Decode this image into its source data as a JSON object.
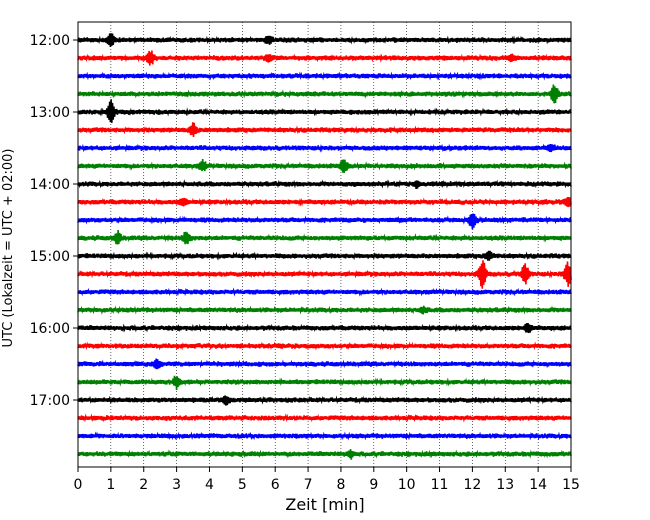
{
  "chart_data": {
    "type": "line",
    "chart_kind": "helicorder",
    "title": "",
    "xlabel": "Zeit  [min]",
    "ylabel": "UTC (Lokalzeit = UTC + 02:00)",
    "xlim": [
      0,
      15
    ],
    "x_ticks": [
      0,
      1,
      2,
      3,
      4,
      5,
      6,
      7,
      8,
      9,
      10,
      11,
      12,
      13,
      14,
      15
    ],
    "x_tick_labels": [
      "0",
      "1",
      "2",
      "3",
      "4",
      "5",
      "6",
      "7",
      "8",
      "9",
      "10",
      "11",
      "12",
      "13",
      "14",
      "15"
    ],
    "vertical_grid": "dotted",
    "trace_interval_min": 15,
    "trace_colors": [
      "#000000",
      "#ff0000",
      "#0000ff",
      "#008000"
    ],
    "y_tick_labels": [
      {
        "label": "12:00",
        "trace": 0
      },
      {
        "label": "13:00",
        "trace": 4
      },
      {
        "label": "14:00",
        "trace": 8
      },
      {
        "label": "15:00",
        "trace": 12
      },
      {
        "label": "16:00",
        "trace": 16
      },
      {
        "label": "17:00",
        "trace": 20
      }
    ],
    "traces": [
      {
        "start": "12:00",
        "events": [
          {
            "t": 1.0,
            "amp": 0.35
          },
          {
            "t": 5.8,
            "amp": 0.2
          }
        ]
      },
      {
        "start": "12:15",
        "events": [
          {
            "t": 2.2,
            "amp": 0.4
          },
          {
            "t": 5.8,
            "amp": 0.2
          },
          {
            "t": 13.2,
            "amp": 0.15
          }
        ]
      },
      {
        "start": "12:30",
        "events": []
      },
      {
        "start": "12:45",
        "events": [
          {
            "t": 14.5,
            "amp": 0.6
          }
        ]
      },
      {
        "start": "13:00",
        "events": [
          {
            "t": 1.0,
            "amp": 0.7
          }
        ]
      },
      {
        "start": "13:15",
        "events": [
          {
            "t": 3.5,
            "amp": 0.35
          }
        ]
      },
      {
        "start": "13:30",
        "events": [
          {
            "t": 14.4,
            "amp": 0.15
          }
        ]
      },
      {
        "start": "13:45",
        "events": [
          {
            "t": 3.8,
            "amp": 0.3
          },
          {
            "t": 8.1,
            "amp": 0.4
          }
        ]
      },
      {
        "start": "14:00",
        "events": [
          {
            "t": 10.3,
            "amp": 0.15
          }
        ]
      },
      {
        "start": "14:15",
        "events": [
          {
            "t": 3.2,
            "amp": 0.2
          },
          {
            "t": 14.9,
            "amp": 0.25
          }
        ]
      },
      {
        "start": "14:30",
        "events": [
          {
            "t": 12.0,
            "amp": 0.5
          }
        ]
      },
      {
        "start": "14:45",
        "events": [
          {
            "t": 1.2,
            "amp": 0.35
          },
          {
            "t": 3.3,
            "amp": 0.35
          }
        ]
      },
      {
        "start": "15:00",
        "events": [
          {
            "t": 12.5,
            "amp": 0.25
          }
        ]
      },
      {
        "start": "15:15",
        "events": [
          {
            "t": 12.3,
            "amp": 0.9
          },
          {
            "t": 13.6,
            "amp": 0.6
          },
          {
            "t": 14.9,
            "amp": 0.7
          }
        ]
      },
      {
        "start": "15:30",
        "events": []
      },
      {
        "start": "15:45",
        "events": [
          {
            "t": 10.5,
            "amp": 0.15
          }
        ]
      },
      {
        "start": "16:00",
        "events": [
          {
            "t": 13.7,
            "amp": 0.3
          }
        ]
      },
      {
        "start": "16:15",
        "events": []
      },
      {
        "start": "16:30",
        "events": [
          {
            "t": 2.4,
            "amp": 0.3
          }
        ]
      },
      {
        "start": "16:45",
        "events": [
          {
            "t": 3.0,
            "amp": 0.35
          }
        ]
      },
      {
        "start": "17:00",
        "events": [
          {
            "t": 4.5,
            "amp": 0.25
          }
        ]
      },
      {
        "start": "17:15",
        "events": []
      },
      {
        "start": "17:30",
        "events": []
      },
      {
        "start": "17:45",
        "events": [
          {
            "t": 8.3,
            "amp": 0.2
          }
        ]
      }
    ]
  }
}
